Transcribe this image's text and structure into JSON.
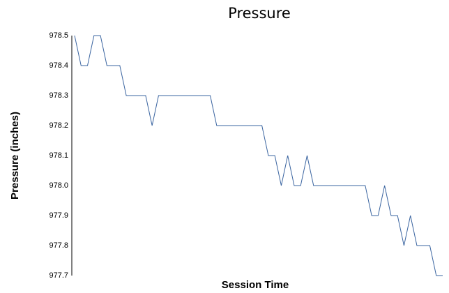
{
  "chart_data": {
    "type": "line",
    "title": "Pressure",
    "x_label": "Session Time",
    "y_label": "Pressure (inches)",
    "values": [
      978.5,
      978.4,
      978.4,
      978.5,
      978.5,
      978.4,
      978.4,
      978.4,
      978.3,
      978.3,
      978.3,
      978.3,
      978.2,
      978.3,
      978.3,
      978.3,
      978.3,
      978.3,
      978.3,
      978.3,
      978.3,
      978.3,
      978.2,
      978.2,
      978.2,
      978.2,
      978.2,
      978.2,
      978.2,
      978.2,
      978.1,
      978.1,
      978.0,
      978.1,
      978.0,
      978.0,
      978.1,
      978.0,
      978.0,
      978.0,
      978.0,
      978.0,
      978.0,
      978.0,
      978.0,
      978.0,
      977.9,
      977.9,
      978.0,
      977.9,
      977.9,
      977.8,
      977.9,
      977.8,
      977.8,
      977.8,
      977.7,
      977.7
    ],
    "color": "#3a64a0",
    "ylim": [
      977.7,
      978.5
    ],
    "yticks": [
      977.7,
      977.8,
      977.9,
      {
        "value": 978,
        "label": "978.0"
      },
      978.1,
      978.2,
      978.3,
      978.4,
      978.5
    ],
    "grid": false
  }
}
